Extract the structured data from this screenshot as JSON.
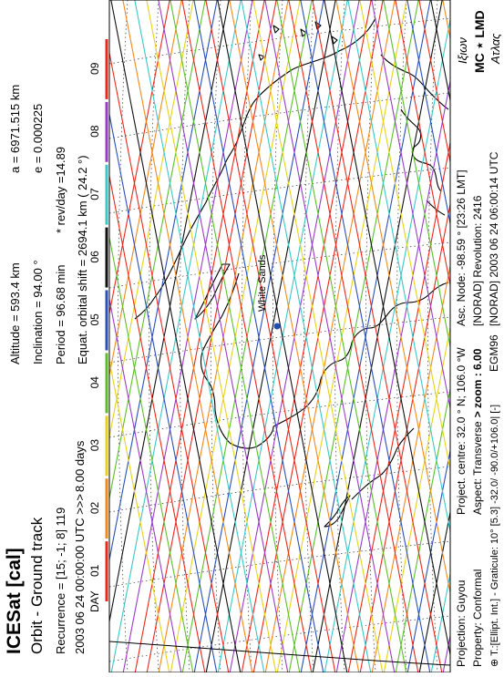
{
  "header": {
    "title": "ICESat [cal]",
    "subtitle": "Orbit - Ground track",
    "recurrence": "Recurrence = [15; -1; 8] 119",
    "start": "2003 06 24 00:00:00 UTC  >>>",
    "duration": "8.00 days"
  },
  "orbit": {
    "altitude": "Altitude = 593.4 km",
    "semi_major": "a = 6971.515 km",
    "inclination": "Inclination = 94.00 °",
    "eccentricity": "e = 0.000225",
    "period": "Period = 96.68 min",
    "rev_per_day": "* rev/day =14.89",
    "orbital_shift": "Equat. orbital shift = 2694.1 km  ( 24.2 °)"
  },
  "footer": {
    "projection": "Projection:  Guyou",
    "property": "Property:  Conformal",
    "centre": "Project. centre: 32.0 ° N; 106.0 °W",
    "aspect_prefix": "Aspect:  Transverse",
    "aspect_zoom": "> zoom : 6.00",
    "graticule": "⊕ T.:[Ellipt. Int.] - Graticule: 10° [5.3] -32.0/ -90.0/+106.0| [-]",
    "egm": "EGM96",
    "asc_node": "Asc. Node:  -98.59 ° [23:26 LMT]",
    "revolution": "[NORAD] Revolution:  2416",
    "norad_date": "[NORAD] 2003 06 24 06:00:14 UTC",
    "logo_greek_top": "Ιξιων",
    "logo_mc": "MC ⋆ LMD",
    "logo_greek_bottom": "Ατλας"
  },
  "chart_data": {
    "type": "map",
    "day_axis_label": "DAY",
    "days": [
      "01",
      "02",
      "03",
      "04",
      "05",
      "06",
      "07",
      "08",
      "09"
    ],
    "day_colors": [
      "#e8291c",
      "#f08a1c",
      "#e6d21c",
      "#5cbf2a",
      "#2a4fb8",
      "#111111",
      "#3cc7c7",
      "#9a3cc7",
      "#e8291c"
    ],
    "marker": {
      "label": "White Sands",
      "lat": 32.4,
      "lon": -106.4,
      "color": "#1f4fb0"
    }
  }
}
